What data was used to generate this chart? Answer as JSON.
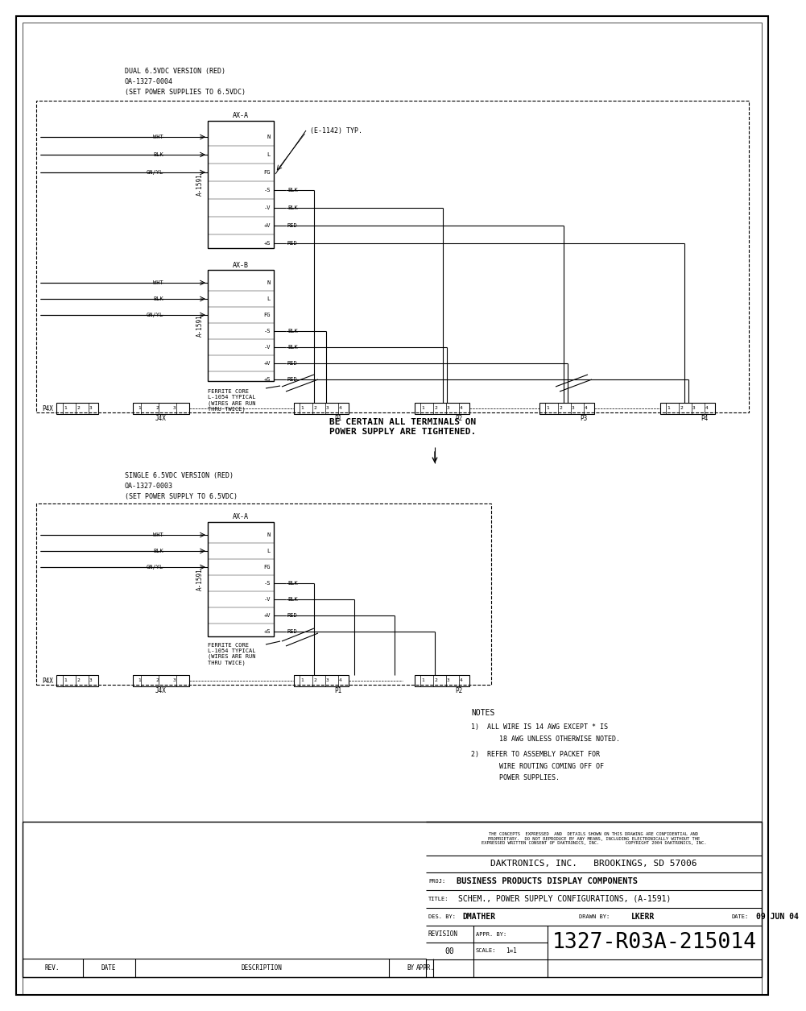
{
  "bg": "#ffffff",
  "lc": "#000000",
  "notes": [
    "NOTES",
    "1)  ALL WIRE IS 14 AWG EXCEPT * IS",
    "     18 AWG UNLESS OTHERWISE NOTED.",
    "2)  REFER TO ASSEMBLY PACKET FOR",
    "     WIRE ROUTING COMING OFF OF",
    "     POWER SUPPLIES."
  ],
  "conf_text": "THE CONCEPTS  EXPRESSED  AND  DETAILS SHOWN ON THIS DRAWING ARE CONFIDENTIAL AND\nPROPRIETARY.  DO NOT REPRODUCE BY ANY MEANS, INCLUDING ELECTRONICALLY WITHOUT THE\nEXPRESSED WRITTEN CONSENT OF DAKTRONICS, INC.          COPYRIGHT 2004 DAKTRONICS, INC.",
  "company": "DAKTRONICS, INC.   BROOKINGS, SD 57006",
  "proj": "BUSINESS PRODUCTS DISPLAY COMPONENTS",
  "drawing_title": "SCHEM., POWER SUPPLY CONFIGURATIONS, (A-1591)",
  "des_by": "DMATHER",
  "drawn_by": "LKERR",
  "date": "09 JUN 04",
  "revision": "00",
  "scale": "1=1",
  "drawing_number": "1327-R03A-215014",
  "dual_title": [
    "DUAL 6.5VDC VERSION (RED)",
    "OA-1327-0004",
    "(SET POWER SUPPLIES TO 6.5VDC)"
  ],
  "single_title": [
    "SINGLE 6.5VDC VERSION (RED)",
    "OA-1327-0003",
    "(SET POWER SUPPLY TO 6.5VDC)"
  ],
  "be_certain": "BE CERTAIN ALL TERMINALS ON\nPOWER SUPPLY ARE TIGHTENED.",
  "e1142": "(E-1142) TYP.",
  "ferrite": "FERRITE CORE\nL-1054 TYPICAL\n(WIRES ARE RUN\nTHRU TWICE)"
}
